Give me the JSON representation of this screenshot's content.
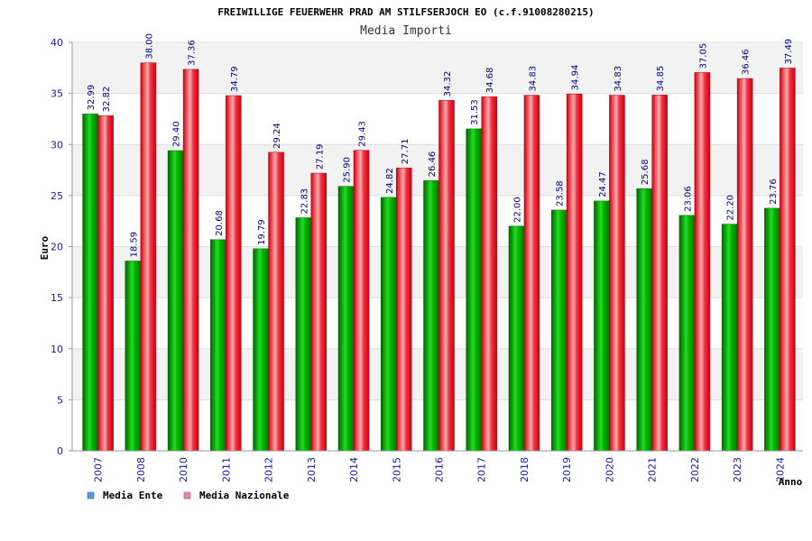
{
  "chart_data": {
    "type": "bar",
    "title": "FREIWILLIGE FEUERWEHR PRAD AM STILFSERJOCH EO (c.f.91008280215)",
    "subtitle": "Media Importi",
    "xlabel": "Anno",
    "ylabel": "Euro",
    "ylim": [
      0,
      40
    ],
    "yticks": [
      0,
      5,
      10,
      15,
      20,
      25,
      30,
      35,
      40
    ],
    "grid": true,
    "legend_position": "bottom-left",
    "categories": [
      "2007",
      "2008",
      "2010",
      "2011",
      "2012",
      "2013",
      "2014",
      "2015",
      "2016",
      "2017",
      "2018",
      "2019",
      "2020",
      "2021",
      "2022",
      "2023",
      "2024"
    ],
    "series": [
      {
        "name": "Media Ente",
        "color": "#00b000",
        "legend_color": "#5599dd",
        "values": [
          32.99,
          18.59,
          29.4,
          20.68,
          19.79,
          22.83,
          25.9,
          24.82,
          26.46,
          31.53,
          22.0,
          23.58,
          24.47,
          25.68,
          23.06,
          22.2,
          23.76
        ],
        "labels": [
          "32.99",
          "18.59",
          "29.40",
          "20.68",
          "19.79",
          "22.83",
          "25.90",
          "24.82",
          "26.46",
          "31.53",
          "22.00",
          "23.58",
          "24.47",
          "25.68",
          "23.06",
          "22.20",
          "23.76"
        ]
      },
      {
        "name": "Media Nazionale",
        "color": "#ee2233",
        "legend_color": "#dd88aa",
        "values": [
          32.82,
          38.0,
          37.36,
          34.79,
          29.24,
          27.19,
          29.43,
          27.71,
          34.32,
          34.68,
          34.83,
          34.94,
          34.83,
          34.85,
          37.05,
          36.46,
          37.49
        ],
        "labels": [
          "32.82",
          "38.00",
          "37.36",
          "34.79",
          "29.24",
          "27.19",
          "29.43",
          "27.71",
          "34.32",
          "34.68",
          "34.83",
          "34.94",
          "34.83",
          "34.85",
          "37.05",
          "36.46",
          "37.49"
        ]
      }
    ]
  }
}
